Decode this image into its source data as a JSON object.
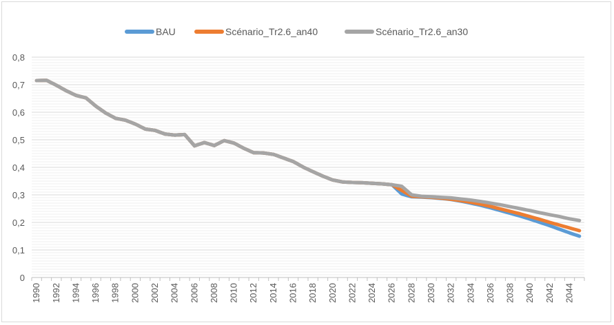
{
  "chart_data": {
    "type": "line",
    "title": "",
    "xlabel": "",
    "ylabel": "",
    "ylim": [
      0,
      0.8
    ],
    "y_ticks": [
      "0",
      "0,1",
      "0,2",
      "0,3",
      "0,4",
      "0,5",
      "0,6",
      "0,7",
      "0,8"
    ],
    "x_tick_labels": [
      "1990",
      "1992",
      "1994",
      "1996",
      "1998",
      "2000",
      "2002",
      "2004",
      "2006",
      "2008",
      "2010",
      "2012",
      "2014",
      "2016",
      "2018",
      "2020",
      "2022",
      "2024",
      "2026",
      "2028",
      "2030",
      "2032",
      "2034",
      "2036",
      "2038",
      "2040",
      "2042",
      "2044"
    ],
    "grid": "horizontal",
    "legend_position": "top",
    "x": [
      1990,
      1991,
      1992,
      1993,
      1994,
      1995,
      1996,
      1997,
      1998,
      1999,
      2000,
      2001,
      2002,
      2003,
      2004,
      2005,
      2006,
      2007,
      2008,
      2009,
      2010,
      2011,
      2012,
      2013,
      2014,
      2015,
      2016,
      2017,
      2018,
      2019,
      2020,
      2021,
      2022,
      2023,
      2024,
      2025,
      2026,
      2027,
      2028,
      2029,
      2030,
      2031,
      2032,
      2033,
      2034,
      2035,
      2036,
      2037,
      2038,
      2039,
      2040,
      2041,
      2042,
      2043,
      2044,
      2045
    ],
    "series": [
      {
        "name": "BAU",
        "color": "#5b9bd5",
        "values": [
          0.715,
          0.716,
          0.698,
          0.678,
          0.661,
          0.652,
          0.622,
          0.597,
          0.578,
          0.571,
          0.557,
          0.539,
          0.534,
          0.521,
          0.517,
          0.519,
          0.478,
          0.49,
          0.479,
          0.497,
          0.488,
          0.469,
          0.453,
          0.452,
          0.447,
          0.434,
          0.421,
          0.401,
          0.384,
          0.368,
          0.354,
          0.347,
          0.345,
          0.344,
          0.342,
          0.34,
          0.337,
          0.303,
          0.293,
          0.292,
          0.29,
          0.287,
          0.283,
          0.277,
          0.27,
          0.262,
          0.253,
          0.243,
          0.233,
          0.223,
          0.212,
          0.2,
          0.188,
          0.175,
          0.162,
          0.15
        ]
      },
      {
        "name": "Scénario_Tr2.6_an40",
        "color": "#ed7d31",
        "values": [
          0.715,
          0.716,
          0.698,
          0.678,
          0.661,
          0.652,
          0.622,
          0.597,
          0.578,
          0.571,
          0.557,
          0.539,
          0.534,
          0.521,
          0.517,
          0.519,
          0.478,
          0.49,
          0.479,
          0.497,
          0.488,
          0.469,
          0.453,
          0.452,
          0.447,
          0.434,
          0.421,
          0.401,
          0.384,
          0.368,
          0.354,
          0.347,
          0.345,
          0.344,
          0.342,
          0.34,
          0.337,
          0.316,
          0.295,
          0.293,
          0.291,
          0.288,
          0.284,
          0.279,
          0.273,
          0.266,
          0.258,
          0.249,
          0.24,
          0.231,
          0.221,
          0.211,
          0.2,
          0.19,
          0.18,
          0.17
        ]
      },
      {
        "name": "Scénario_Tr2.6_an30",
        "color": "#a5a5a5",
        "values": [
          0.715,
          0.716,
          0.698,
          0.678,
          0.661,
          0.652,
          0.622,
          0.597,
          0.578,
          0.571,
          0.557,
          0.539,
          0.534,
          0.521,
          0.517,
          0.519,
          0.478,
          0.49,
          0.479,
          0.497,
          0.488,
          0.469,
          0.453,
          0.452,
          0.447,
          0.434,
          0.421,
          0.401,
          0.384,
          0.368,
          0.354,
          0.347,
          0.345,
          0.344,
          0.342,
          0.34,
          0.337,
          0.331,
          0.3,
          0.295,
          0.293,
          0.291,
          0.289,
          0.285,
          0.281,
          0.276,
          0.27,
          0.264,
          0.257,
          0.25,
          0.243,
          0.235,
          0.228,
          0.221,
          0.213,
          0.207
        ]
      }
    ]
  }
}
